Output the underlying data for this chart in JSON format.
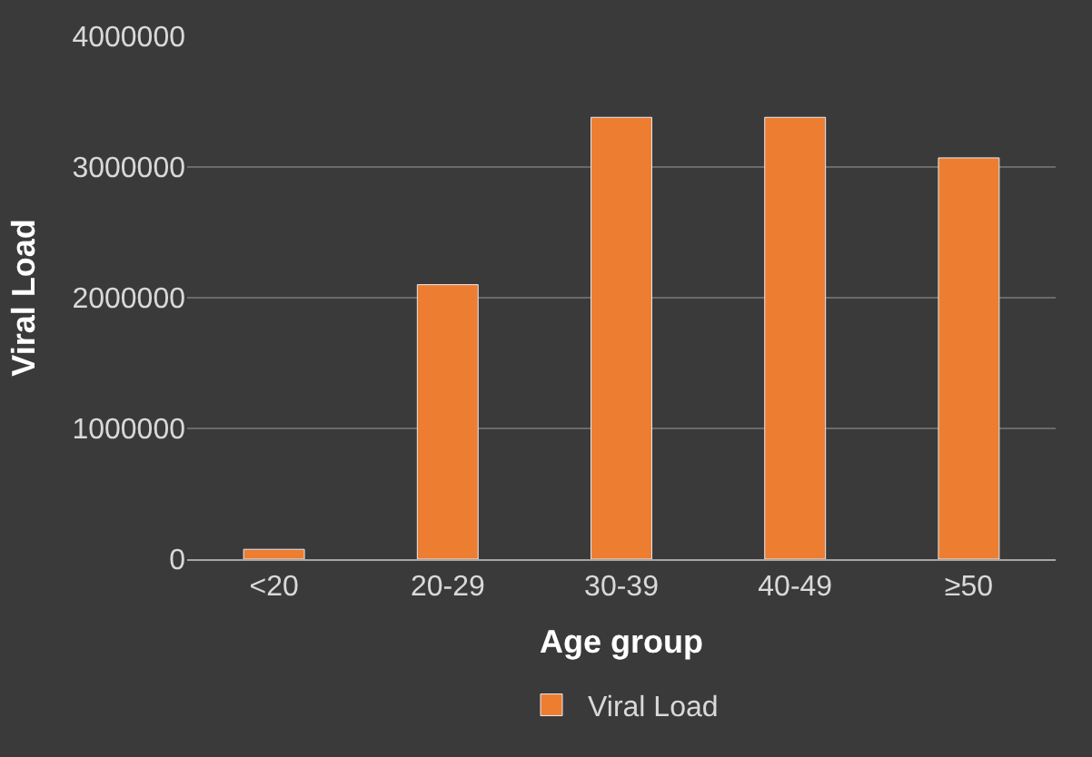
{
  "chart_data": {
    "type": "bar",
    "xlabel": "Age group",
    "ylabel": "Viral Load",
    "categories": [
      "<20",
      "20-29",
      "30-39",
      "40-49",
      "≥50"
    ],
    "series": [
      {
        "name": "Viral Load",
        "color": "#ed7d31",
        "values": [
          75000,
          2100000,
          3380000,
          3380000,
          3070000
        ]
      }
    ],
    "ylim": [
      0,
      4000000
    ],
    "yticks": [
      0,
      1000000,
      2000000,
      3000000,
      4000000
    ],
    "grid": "y",
    "legend": "bottom"
  }
}
